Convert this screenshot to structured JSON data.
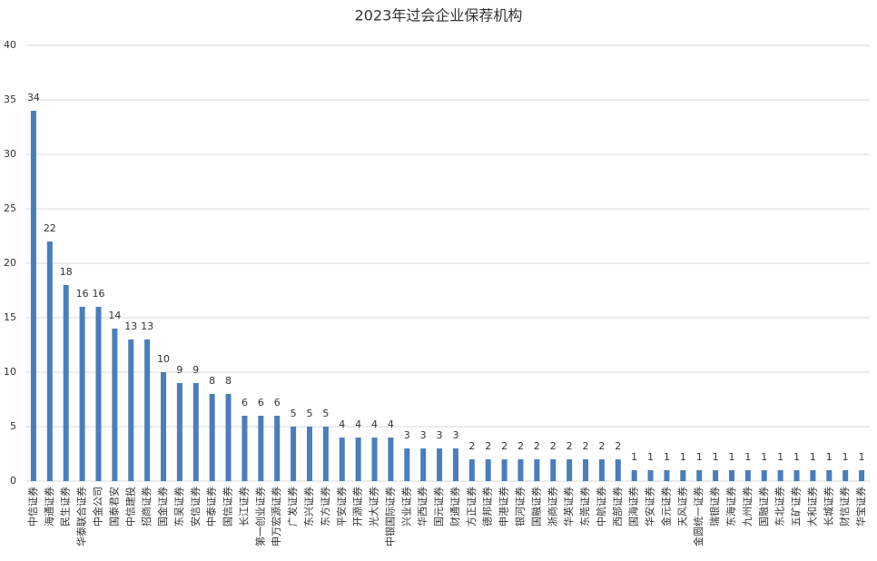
{
  "chart_data": {
    "type": "bar",
    "title": "2023年过会企业保荐机构",
    "categories": [
      "中信证券",
      "海通证券",
      "民生证券",
      "华泰联合证券",
      "中金公司",
      "国泰君安",
      "中信建投",
      "招商证券",
      "国金证券",
      "东吴证券",
      "安信证券",
      "中泰证券",
      "国信证券",
      "长江证券",
      "第一创业证券",
      "申万宏源证券",
      "广发证券",
      "东兴证券",
      "东方证券",
      "平安证券",
      "开源证券",
      "光大证券",
      "中银国际证券",
      "兴业证券",
      "华西证券",
      "国元证券",
      "财通证券",
      "方正证券",
      "德邦证券",
      "申港证券",
      "银河证券",
      "国融证券",
      "浙商证券",
      "华英证券",
      "东莞证券",
      "中航证券",
      "西部证券",
      "国海证券",
      "华安证券",
      "金元证券",
      "天风证券",
      "金圆统一证券",
      "瑞银证券",
      "东海证券",
      "九州证券",
      "国融证券",
      "东北证券",
      "五矿证券",
      "大和证券",
      "长城证券",
      "财信证券",
      "华宝证券"
    ],
    "values": [
      34,
      22,
      18,
      16,
      16,
      14,
      13,
      13,
      10,
      9,
      9,
      8,
      8,
      6,
      6,
      6,
      5,
      5,
      5,
      4,
      4,
      4,
      4,
      3,
      3,
      3,
      3,
      2,
      2,
      2,
      2,
      2,
      2,
      2,
      2,
      2,
      2,
      1,
      1,
      1,
      1,
      1,
      1,
      1,
      1,
      1,
      1,
      1,
      1,
      1,
      1,
      1
    ],
    "color": "#4a7ebb",
    "ylim": [
      0,
      40
    ],
    "yticks": [
      0,
      5,
      10,
      15,
      20,
      25,
      30,
      35,
      40
    ],
    "grid": true
  }
}
